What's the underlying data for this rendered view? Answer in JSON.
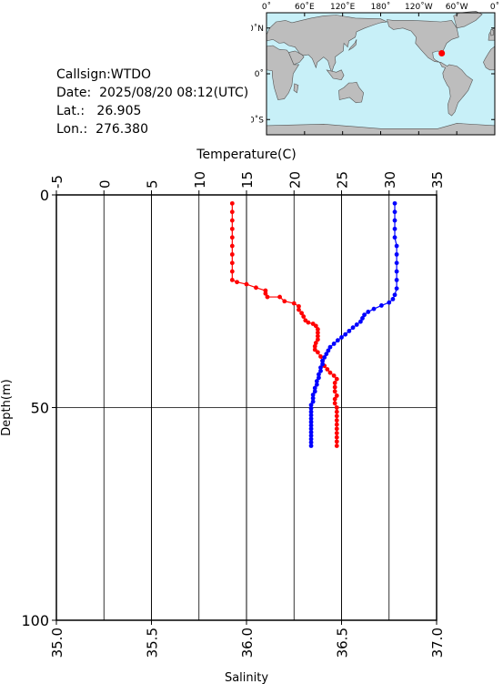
{
  "station": {
    "callsign_label": "Callsign:",
    "callsign": "WTDO",
    "date_label": "Date:",
    "date": "2025/08/20 08:12(UTC)",
    "lat_label": "Lat.:",
    "lat": "26.905",
    "lon_label": "Lon.:",
    "lon": "276.380"
  },
  "map": {
    "top_ticks": [
      "0˚",
      "60˚E",
      "120˚E",
      "180˚",
      "120˚W",
      "60˚W",
      "0˚"
    ],
    "left_ticks": [
      "60˚N",
      "0˚",
      "60˚S"
    ],
    "ocean_color": "#c8f0f8",
    "land_color": "#bdbdbd",
    "marker_color": "#ff0000",
    "marker_lon": 276.38,
    "marker_lat": 26.905
  },
  "chart_data": {
    "type": "line",
    "ylabel": "Depth(m)",
    "ylim": [
      100,
      0
    ],
    "yticks": [
      "0",
      "50",
      "100"
    ],
    "top_axis": {
      "label": "Temperature(C)",
      "range": [
        -5,
        35
      ],
      "ticks": [
        "-5",
        "0",
        "5",
        "10",
        "15",
        "20",
        "25",
        "30",
        "35"
      ]
    },
    "bottom_axis": {
      "label": "Salinity",
      "range": [
        35.0,
        37.0
      ],
      "ticks": [
        "35.0",
        "35.5",
        "36.0",
        "36.5",
        "37.0"
      ]
    },
    "grid": true,
    "series": [
      {
        "axis": "temperature",
        "color": "#ff0000",
        "points": [
          [
            13.5,
            2
          ],
          [
            13.5,
            4
          ],
          [
            13.5,
            6
          ],
          [
            13.5,
            8
          ],
          [
            13.5,
            10
          ],
          [
            13.5,
            12
          ],
          [
            13.5,
            14
          ],
          [
            13.5,
            16
          ],
          [
            13.5,
            18
          ],
          [
            13.5,
            20
          ],
          [
            14.0,
            20.5
          ],
          [
            15.0,
            21
          ],
          [
            16.0,
            21.8
          ],
          [
            17.0,
            22.5
          ],
          [
            17.0,
            23.2
          ],
          [
            17.2,
            24
          ],
          [
            18.5,
            24
          ],
          [
            19.0,
            25
          ],
          [
            20.0,
            25.5
          ],
          [
            20.5,
            26.2
          ],
          [
            20.5,
            27
          ],
          [
            20.8,
            27.8
          ],
          [
            21.0,
            28.6
          ],
          [
            21.2,
            29.5
          ],
          [
            21.5,
            30
          ],
          [
            22.0,
            30.3
          ],
          [
            22.3,
            30.8
          ],
          [
            22.5,
            31.6
          ],
          [
            22.5,
            32.4
          ],
          [
            22.5,
            33.2
          ],
          [
            22.5,
            34
          ],
          [
            22.3,
            34.8
          ],
          [
            22.2,
            35.6
          ],
          [
            22.2,
            36.4
          ],
          [
            22.5,
            37
          ],
          [
            22.8,
            38
          ],
          [
            23.0,
            39
          ],
          [
            23.2,
            40.2
          ],
          [
            23.5,
            41
          ],
          [
            23.8,
            41.8
          ],
          [
            24.2,
            42.5
          ],
          [
            24.5,
            43.3
          ],
          [
            24.3,
            44.2
          ],
          [
            24.3,
            45.2
          ],
          [
            24.3,
            46.2
          ],
          [
            24.5,
            47.2
          ],
          [
            24.3,
            48
          ],
          [
            24.3,
            49
          ],
          [
            24.5,
            50
          ],
          [
            24.5,
            51
          ],
          [
            24.5,
            52
          ],
          [
            24.5,
            53
          ],
          [
            24.5,
            54
          ],
          [
            24.5,
            55
          ],
          [
            24.5,
            56
          ],
          [
            24.5,
            57
          ],
          [
            24.5,
            58
          ],
          [
            24.5,
            59
          ]
        ]
      },
      {
        "axis": "salinity",
        "color": "#0000ff",
        "points": [
          [
            36.78,
            2
          ],
          [
            36.78,
            4
          ],
          [
            36.78,
            6
          ],
          [
            36.78,
            8
          ],
          [
            36.78,
            10
          ],
          [
            36.79,
            12
          ],
          [
            36.79,
            14
          ],
          [
            36.79,
            16
          ],
          [
            36.79,
            18
          ],
          [
            36.79,
            20
          ],
          [
            36.79,
            22
          ],
          [
            36.78,
            23.5
          ],
          [
            36.77,
            24.5
          ],
          [
            36.75,
            25.3
          ],
          [
            36.71,
            26
          ],
          [
            36.67,
            26.8
          ],
          [
            36.64,
            27.5
          ],
          [
            36.62,
            28.2
          ],
          [
            36.61,
            29
          ],
          [
            36.6,
            29.8
          ],
          [
            36.58,
            30.5
          ],
          [
            36.56,
            31.2
          ],
          [
            36.54,
            32
          ],
          [
            36.52,
            32.8
          ],
          [
            36.5,
            33.5
          ],
          [
            36.48,
            34.2
          ],
          [
            36.46,
            35
          ],
          [
            36.44,
            35.8
          ],
          [
            36.43,
            36.6
          ],
          [
            36.42,
            37.4
          ],
          [
            36.41,
            38.2
          ],
          [
            36.4,
            39
          ],
          [
            36.4,
            39.8
          ],
          [
            36.39,
            40.6
          ],
          [
            36.39,
            41.4
          ],
          [
            36.38,
            42.2
          ],
          [
            36.38,
            43
          ],
          [
            36.37,
            43.8
          ],
          [
            36.37,
            44.6
          ],
          [
            36.36,
            45.4
          ],
          [
            36.36,
            46.2
          ],
          [
            36.35,
            47
          ],
          [
            36.35,
            47.8
          ],
          [
            36.35,
            48.6
          ],
          [
            36.34,
            49.4
          ],
          [
            36.34,
            50.2
          ],
          [
            36.34,
            51
          ],
          [
            36.34,
            51.8
          ],
          [
            36.34,
            52.6
          ],
          [
            36.34,
            53.4
          ],
          [
            36.34,
            54.2
          ],
          [
            36.34,
            55
          ],
          [
            36.34,
            55.8
          ],
          [
            36.34,
            56.6
          ],
          [
            36.34,
            57.4
          ],
          [
            36.34,
            58.2
          ],
          [
            36.34,
            59
          ]
        ]
      }
    ]
  }
}
